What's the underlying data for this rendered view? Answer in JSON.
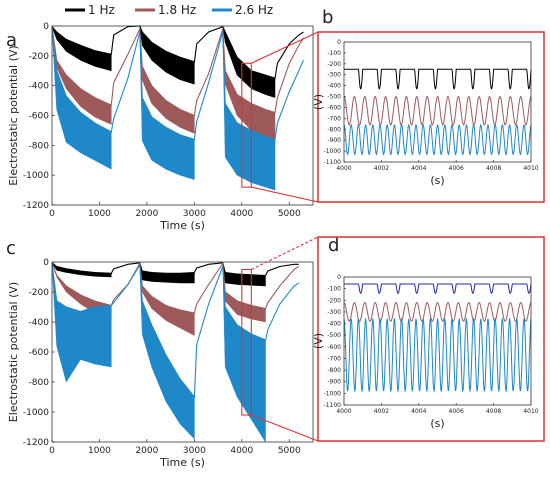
{
  "legend": [
    {
      "label": "1 Hz",
      "color": "#000000"
    },
    {
      "label": "1.8 Hz",
      "color": "#9e5a5a"
    },
    {
      "label": "2.6 Hz",
      "color": "#1e88c8"
    }
  ],
  "colors": {
    "zoom_box": "#e03030",
    "zoom_blue_alt": "#1f2aa8"
  },
  "chart_data": [
    {
      "panel": "a",
      "type": "line",
      "xlabel": "Time (s)",
      "ylabel": "Electrostatic potential (V)",
      "xlim": [
        0,
        5500
      ],
      "ylim": [
        -1200,
        0
      ],
      "xticks": [
        "0",
        "1000",
        "2000",
        "3000",
        "4000",
        "5000"
      ],
      "yticks": [
        "0",
        "-200",
        "-400",
        "-600",
        "-800",
        "-1000",
        "-1200"
      ],
      "zoom_window": {
        "x": [
          4000,
          4200
        ],
        "y": [
          -1080,
          -250
        ]
      },
      "series": [
        {
          "name": "1 Hz",
          "kind": "band",
          "x": [
            0,
            100,
            300,
            600,
            900,
            1250,
            1300,
            1600,
            1850,
            1900,
            2100,
            2400,
            2700,
            3000,
            3050,
            3300,
            3600,
            3650,
            3900,
            4200,
            4500,
            4700,
            4750,
            5000,
            5200,
            5300
          ],
          "upper": [
            -5,
            -40,
            -90,
            -130,
            -165,
            -190,
            -60,
            -5,
            0,
            -40,
            -110,
            -170,
            -210,
            -240,
            -120,
            -40,
            -5,
            -40,
            -210,
            -300,
            -330,
            -350,
            -250,
            -120,
            -60,
            -40
          ],
          "lower": [
            -5,
            -90,
            -170,
            -230,
            -270,
            -300,
            null,
            null,
            0,
            -130,
            -230,
            -310,
            -360,
            -390,
            null,
            null,
            -5,
            -110,
            -330,
            -420,
            -460,
            -480,
            null,
            null,
            null,
            null
          ]
        },
        {
          "name": "1.8 Hz",
          "kind": "band",
          "x": [
            0,
            100,
            300,
            600,
            900,
            1250,
            1300,
            1600,
            1850,
            1900,
            2100,
            2400,
            2700,
            3000,
            3050,
            3300,
            3600,
            3650,
            3900,
            4200,
            4500,
            4700,
            4750,
            5000,
            5200,
            5300
          ],
          "upper": [
            -5,
            -230,
            -330,
            -420,
            -480,
            -530,
            -380,
            -190,
            -20,
            -270,
            -400,
            -500,
            -560,
            -600,
            -500,
            -320,
            -20,
            -300,
            -460,
            -520,
            -560,
            -580,
            -480,
            -250,
            -130,
            -80
          ],
          "lower": [
            -5,
            -280,
            -420,
            -540,
            -610,
            -660,
            null,
            null,
            -20,
            -360,
            -520,
            -620,
            -680,
            -720,
            null,
            null,
            -20,
            -390,
            -600,
            -700,
            -760,
            -800,
            null,
            null,
            null,
            null
          ]
        },
        {
          "name": "2.6 Hz",
          "kind": "band",
          "x": [
            0,
            100,
            300,
            600,
            900,
            1250,
            1300,
            1600,
            1850,
            1900,
            2100,
            2400,
            2700,
            3000,
            3050,
            3300,
            3600,
            3650,
            3900,
            4200,
            4500,
            4700,
            4750,
            5000,
            5200,
            5300
          ],
          "upper": [
            -10,
            -300,
            -470,
            -580,
            -650,
            -710,
            -620,
            -350,
            -40,
            -480,
            -610,
            -680,
            -730,
            -760,
            -640,
            -380,
            -40,
            -520,
            -650,
            -700,
            -740,
            -760,
            -650,
            -440,
            -300,
            -230
          ],
          "lower": [
            -10,
            -560,
            -780,
            -850,
            -900,
            -960,
            null,
            null,
            -40,
            -770,
            -900,
            -960,
            -1000,
            -1030,
            null,
            null,
            -40,
            -880,
            -1000,
            -1050,
            -1080,
            -1100,
            null,
            null,
            null,
            null
          ]
        }
      ]
    },
    {
      "panel": "b",
      "type": "line",
      "xlabel": "(s)",
      "ylabel": "(V)",
      "xlim": [
        4000,
        4010
      ],
      "ylim": [
        -1100,
        0
      ],
      "xticks": [
        "4000",
        "4002",
        "4004",
        "4006",
        "4008",
        "4010"
      ],
      "yticks": [
        "0",
        "-100",
        "-200",
        "-300",
        "-400",
        "-500",
        "-600",
        "-700",
        "-800",
        "-900",
        "-1000",
        "-1100"
      ],
      "series": [
        {
          "name": "1 Hz",
          "period_s": 1.0,
          "high": -250,
          "low": -430
        },
        {
          "name": "1.8 Hz",
          "period_s": 0.556,
          "high": -500,
          "low": -760
        },
        {
          "name": "2.6 Hz",
          "period_s": 0.385,
          "high": -760,
          "low": -1030
        }
      ]
    },
    {
      "panel": "c",
      "type": "line",
      "xlabel": "Time (s)",
      "ylabel": "Electrostatic potential (V)",
      "xlim": [
        0,
        5500
      ],
      "ylim": [
        -1200,
        0
      ],
      "xticks": [
        "0",
        "1000",
        "2000",
        "3000",
        "4000",
        "5000"
      ],
      "yticks": [
        "0",
        "-200",
        "-400",
        "-600",
        "-800",
        "-1000",
        "-1200"
      ],
      "zoom_window": {
        "x": [
          4000,
          4200
        ],
        "y": [
          -1020,
          -50
        ]
      },
      "series": [
        {
          "name": "1 Hz",
          "kind": "band",
          "x": [
            0,
            100,
            300,
            600,
            900,
            1250,
            1300,
            1600,
            1850,
            1900,
            2100,
            2400,
            2700,
            3000,
            3050,
            3300,
            3600,
            3650,
            3900,
            4200,
            4500,
            4550,
            4800,
            5100,
            5200
          ],
          "upper": [
            -5,
            -30,
            -45,
            -60,
            -70,
            -75,
            -45,
            -15,
            -5,
            -60,
            -70,
            -75,
            -75,
            -70,
            -40,
            -15,
            -5,
            -70,
            -80,
            -85,
            -90,
            -60,
            -30,
            -15,
            -15
          ],
          "lower": [
            -5,
            -55,
            -70,
            -85,
            -95,
            -100,
            null,
            null,
            -5,
            -120,
            -130,
            -135,
            -140,
            -140,
            null,
            null,
            -5,
            -140,
            -150,
            -155,
            -160,
            null,
            null,
            null,
            null
          ]
        },
        {
          "name": "1.8 Hz",
          "kind": "band",
          "x": [
            0,
            100,
            300,
            600,
            900,
            1250,
            1300,
            1600,
            1850,
            1900,
            2100,
            2400,
            2700,
            3000,
            3050,
            3300,
            3600,
            3650,
            3900,
            4200,
            4500,
            4550,
            4800,
            5100,
            5200
          ],
          "upper": [
            -5,
            -90,
            -160,
            -220,
            -260,
            -290,
            -250,
            -150,
            -10,
            -160,
            -230,
            -290,
            -320,
            -340,
            -280,
            -150,
            -10,
            -200,
            -260,
            -290,
            -310,
            -270,
            -160,
            -50,
            -30
          ],
          "lower": [
            -5,
            -100,
            -200,
            -280,
            -340,
            -380,
            null,
            null,
            -10,
            -200,
            -310,
            -390,
            -440,
            -490,
            null,
            null,
            -10,
            -260,
            -350,
            -380,
            -400,
            null,
            null,
            null,
            null
          ]
        },
        {
          "name": "2.6 Hz",
          "kind": "band",
          "x": [
            0,
            100,
            300,
            600,
            900,
            1250,
            1300,
            1600,
            1850,
            1900,
            2100,
            2400,
            2700,
            3000,
            3050,
            3300,
            3600,
            3650,
            3900,
            4200,
            4500,
            4550,
            4800,
            5100,
            5200
          ],
          "upper": [
            -10,
            -260,
            -300,
            -330,
            -300,
            -290,
            -270,
            -150,
            -20,
            -260,
            -420,
            -620,
            -780,
            -900,
            -550,
            -280,
            -30,
            -300,
            -420,
            -480,
            -520,
            -450,
            -280,
            -160,
            -140
          ],
          "lower": [
            -10,
            -560,
            -800,
            -650,
            -680,
            -700,
            null,
            null,
            -20,
            -480,
            -700,
            -930,
            -1080,
            -1180,
            null,
            null,
            -30,
            -700,
            -900,
            -1050,
            -1200,
            null,
            null,
            null,
            null
          ]
        }
      ]
    },
    {
      "panel": "d",
      "type": "line",
      "xlabel": "(s)",
      "ylabel": "(V)",
      "xlim": [
        4000,
        4010
      ],
      "ylim": [
        -1100,
        0
      ],
      "xticks": [
        "4000",
        "4002",
        "4004",
        "4006",
        "4008",
        "4010"
      ],
      "yticks": [
        "0",
        "-100",
        "-200",
        "-300",
        "-400",
        "-500",
        "-600",
        "-700",
        "-800",
        "-900",
        "-1000",
        "-1100"
      ],
      "series": [
        {
          "name": "1 Hz",
          "period_s": 1.0,
          "high": -60,
          "low": -140,
          "color_key": "zoom_blue_alt"
        },
        {
          "name": "1.8 Hz",
          "period_s": 0.556,
          "high": -220,
          "low": -380
        },
        {
          "name": "2.6 Hz",
          "period_s": 0.385,
          "high": -360,
          "low": -980
        }
      ]
    }
  ]
}
